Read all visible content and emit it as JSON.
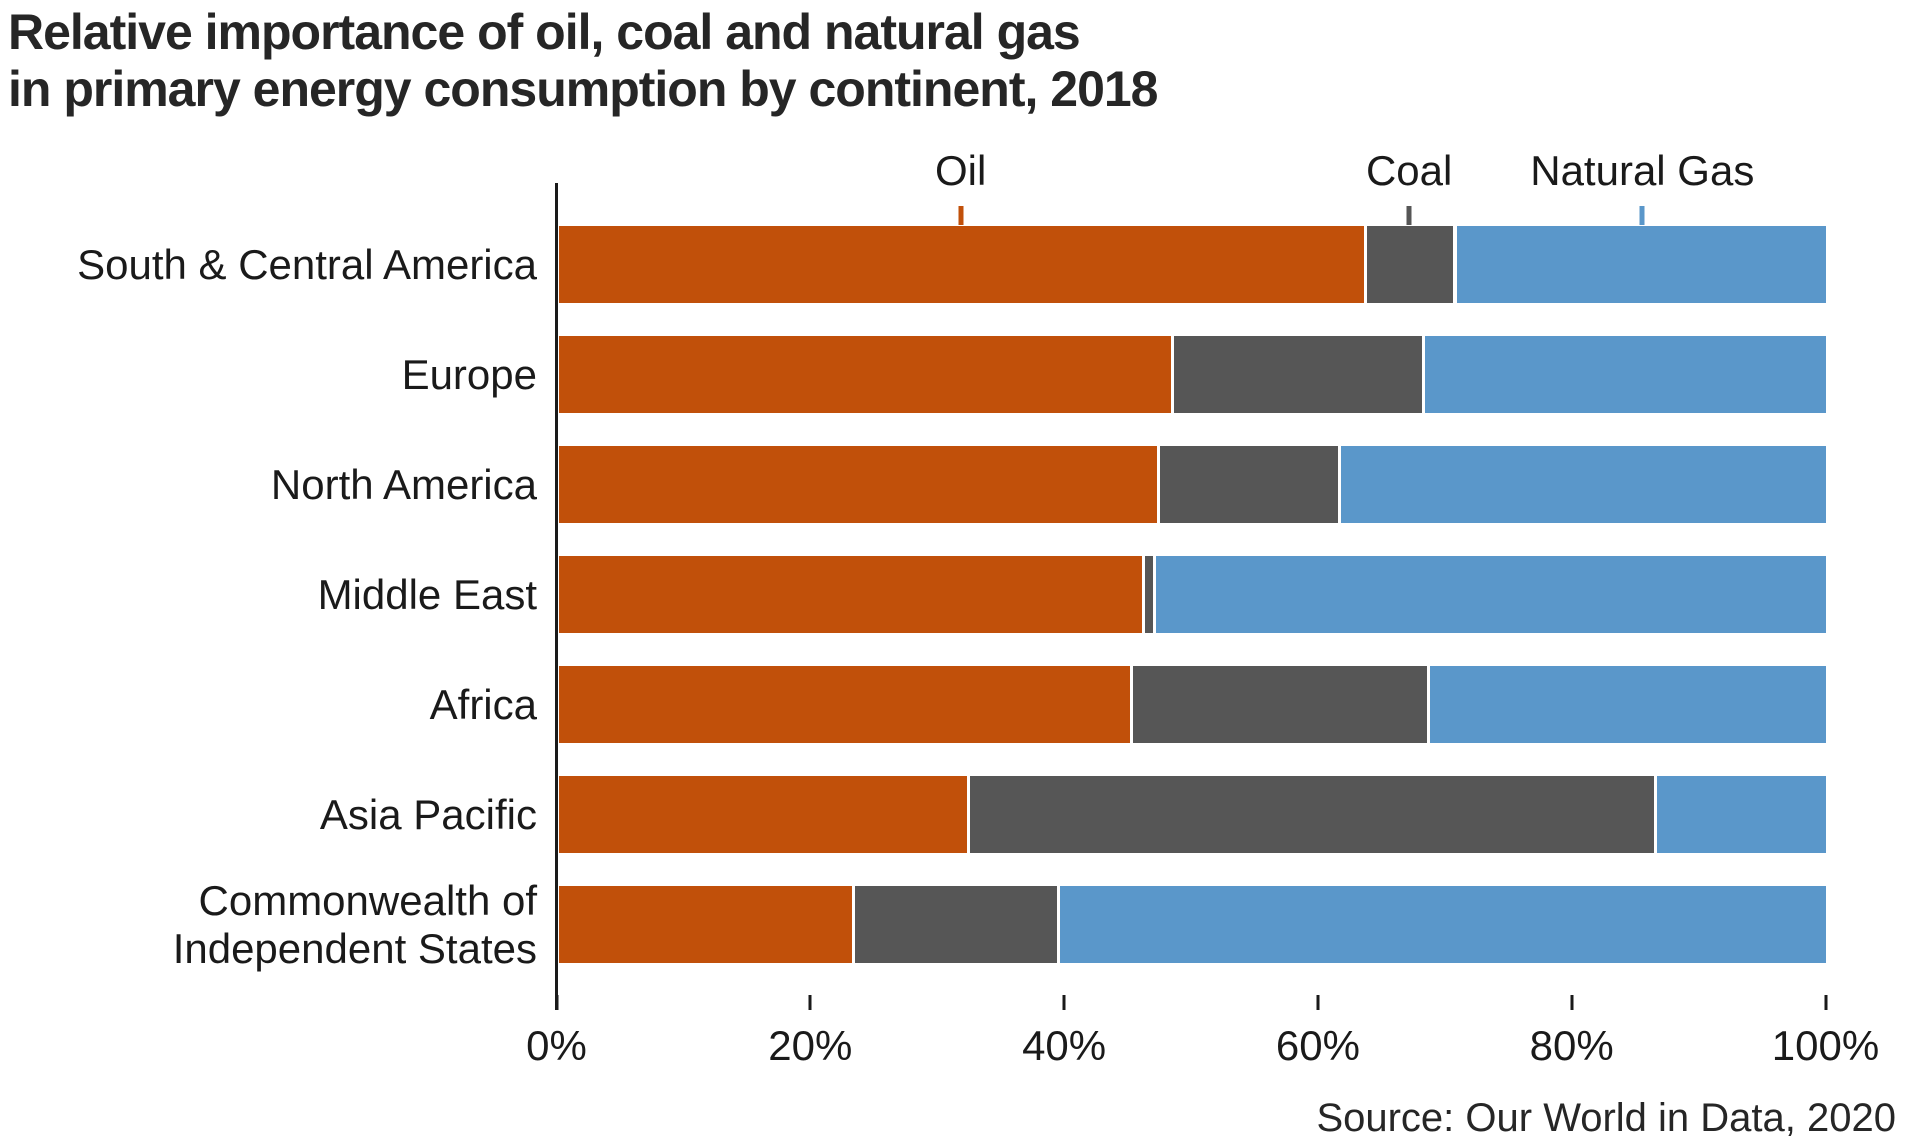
{
  "title_line1": "Relative importance of oil, coal and natural gas",
  "title_line2": "in primary energy consumption by continent, 2018",
  "source": "Source: Our World in Data, 2020",
  "colors": {
    "oil": "#C1500A",
    "coal": "#565656",
    "natural_gas": "#5A97CA",
    "axis": "#1a1a1a",
    "text": "#1a1a1a",
    "title": "#262626"
  },
  "chart_data": {
    "type": "bar",
    "orientation": "horizontal",
    "stacked": true,
    "unit": "%",
    "title": "Relative importance of oil, coal and natural gas in primary energy consumption by continent, 2018",
    "categories": [
      "South & Central America",
      "Europe",
      "North America",
      "Middle East",
      "Africa",
      "Asia Pacific",
      "Commonwealth of\nIndependent States"
    ],
    "series": [
      {
        "name": "Oil",
        "color_key": "oil",
        "values": [
          63.5,
          48.3,
          47.2,
          46.0,
          45.1,
          32.2,
          23.1
        ]
      },
      {
        "name": "Coal",
        "color_key": "coal",
        "values": [
          7.1,
          19.8,
          14.3,
          0.9,
          23.4,
          54.2,
          16.2
        ]
      },
      {
        "name": "Natural Gas",
        "color_key": "natural_gas",
        "values": [
          29.4,
          31.9,
          38.5,
          53.1,
          31.5,
          13.6,
          60.7
        ]
      }
    ],
    "x_ticks": [
      "0%",
      "20%",
      "40%",
      "60%",
      "80%",
      "100%"
    ],
    "xlim": [
      0,
      100
    ],
    "grid": false,
    "legend_position": "top",
    "legend": [
      {
        "label": "Oil",
        "anchor_pct": 31.7
      },
      {
        "label": "Coal",
        "anchor_pct": 67.1
      },
      {
        "label": "Natural Gas",
        "anchor_pct": 85.5
      }
    ]
  }
}
